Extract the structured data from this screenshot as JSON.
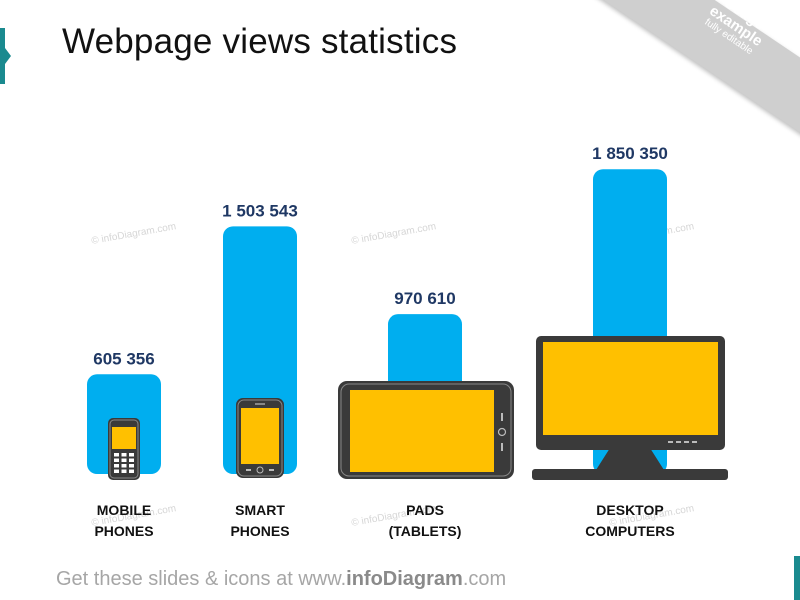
{
  "title": "Webpage views statistics",
  "ribbon": {
    "line1": "Usage",
    "line2": "example",
    "line3": "fully editable"
  },
  "watermark": "© infoDiagram.com",
  "footer": {
    "prefix": "Get these slides & icons at www.",
    "brand": "infoDiagram",
    "suffix": ".com"
  },
  "colors": {
    "bar": "#00aeef",
    "value_label": "#1f3864",
    "screen": "#ffc000",
    "device": "#3a3a3a"
  },
  "chart_data": {
    "type": "bar",
    "title": "Webpage views statistics",
    "categories": [
      "MOBILE PHONES",
      "SMART PHONES",
      "PADS (TABLETS)",
      "DESKTOP COMPUTERS"
    ],
    "category_lines": [
      [
        "MOBILE",
        "PHONES"
      ],
      [
        "SMART",
        "PHONES"
      ],
      [
        "PADS",
        "(TABLETS)"
      ],
      [
        "DESKTOP",
        "COMPUTERS"
      ]
    ],
    "values": [
      605356,
      1503543,
      970610,
      1850350
    ],
    "value_labels": [
      "605 356",
      "1 503 543",
      "970 610",
      "1 850 350"
    ],
    "icons": [
      "mobile-phone-icon",
      "smartphone-icon",
      "tablet-icon",
      "desktop-monitor-icon"
    ],
    "xlabel": "",
    "ylabel": "",
    "grid": false,
    "legend": "none"
  }
}
